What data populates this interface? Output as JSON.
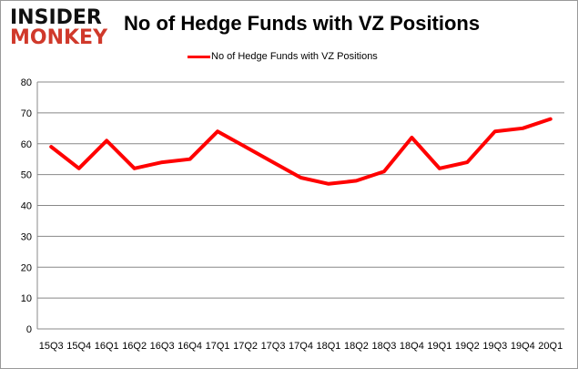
{
  "logo": {
    "line1": "INSIDER",
    "line2": "MONKEY"
  },
  "chart_data": {
    "type": "line",
    "title": "No of Hedge Funds with VZ Positions",
    "categories": [
      "15Q3",
      "15Q4",
      "16Q1",
      "16Q2",
      "16Q3",
      "16Q4",
      "17Q1",
      "17Q2",
      "17Q3",
      "17Q4",
      "18Q1",
      "18Q2",
      "18Q3",
      "18Q4",
      "19Q1",
      "19Q2",
      "19Q3",
      "19Q4",
      "20Q1"
    ],
    "series": [
      {
        "name": "No of Hedge Funds with VZ Positions",
        "color": "#ff0000",
        "values": [
          59,
          52,
          61,
          52,
          54,
          55,
          64,
          59,
          54,
          49,
          47,
          48,
          51,
          62,
          52,
          54,
          64,
          65,
          68
        ]
      }
    ],
    "ylim": [
      0,
      80
    ],
    "yticks": [
      0,
      10,
      20,
      30,
      40,
      50,
      60,
      70,
      80
    ],
    "grid": true,
    "legend": "top"
  }
}
